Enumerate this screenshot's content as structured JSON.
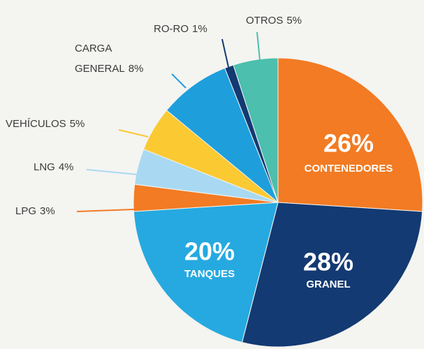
{
  "chart_data": {
    "type": "pie",
    "categories": [
      "CONTENEDORES",
      "GRANEL",
      "TANQUES",
      "LPG",
      "LNG",
      "VEHÍCULOS",
      "CARGA GENERAL",
      "RO-RO",
      "OTROS"
    ],
    "values": [
      26,
      28,
      20,
      3,
      4,
      5,
      8,
      1,
      5
    ],
    "value_labels": [
      "26%",
      "28%",
      "20%",
      "3%",
      "4%",
      "5%",
      "8%",
      "1%",
      "5%"
    ],
    "colors": [
      "#f27b23",
      "#133a72",
      "#26a9e0",
      "#f27b23",
      "#a9d9f2",
      "#fbc932",
      "#1e9fdb",
      "#133a72",
      "#4cbfae"
    ]
  }
}
